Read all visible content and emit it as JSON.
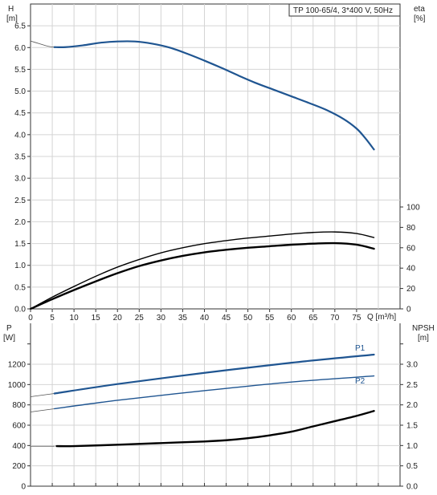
{
  "colors": {
    "blue": "#1f5591",
    "black": "#000000",
    "grid": "#d4d4d4",
    "axis": "#333333"
  },
  "chart_data": [
    {
      "type": "line",
      "legend": "TP 100-65/4, 3*400 V, 50Hz",
      "ylabel_left": "H",
      "ylabel_left_unit": "[m]",
      "ylabel_right": "eta",
      "ylabel_right_unit": "[%]",
      "xlabel": "Q [m³/h]",
      "x_ticks": [
        "0",
        "5",
        "10",
        "15",
        "20",
        "25",
        "30",
        "35",
        "40",
        "45",
        "50",
        "55",
        "60",
        "65",
        "70",
        "75"
      ],
      "xlim": [
        0,
        85
      ],
      "y_left_ticks": [
        "0.0",
        "0.5",
        "1.0",
        "1.5",
        "2.0",
        "2.5",
        "3.0",
        "3.5",
        "4.0",
        "4.5",
        "5.0",
        "5.5",
        "6.0",
        "6.5"
      ],
      "y_left_lim": [
        0,
        7.0
      ],
      "y_right_ticks": [
        "0",
        "20",
        "40",
        "60",
        "80",
        "100"
      ],
      "y_right_lim": [
        0,
        100
      ],
      "grid": true,
      "series": [
        {
          "axis": "left",
          "style": "thin-gray",
          "x": [
            0,
            2,
            4,
            5.5
          ],
          "y": [
            6.15,
            6.09,
            6.03,
            6.01
          ]
        },
        {
          "axis": "left",
          "style": "blue-thick",
          "x": [
            5.5,
            8,
            12,
            16,
            20,
            24,
            28,
            32,
            36,
            40,
            44,
            48,
            52,
            56,
            60,
            64,
            68,
            72,
            75,
            77,
            79
          ],
          "y": [
            6.01,
            6.01,
            6.05,
            6.11,
            6.14,
            6.14,
            6.09,
            6.0,
            5.86,
            5.7,
            5.53,
            5.35,
            5.18,
            5.03,
            4.88,
            4.73,
            4.57,
            4.36,
            4.14,
            3.92,
            3.66
          ]
        },
        {
          "axis": "right",
          "style": "black-thin",
          "x": [
            0,
            5,
            10,
            15,
            20,
            25,
            30,
            35,
            40,
            45,
            50,
            55,
            60,
            65,
            70,
            75,
            79
          ],
          "y": [
            0,
            11.5,
            22,
            32,
            41,
            48.5,
            55,
            60,
            64,
            67,
            69.5,
            71.5,
            73.5,
            75,
            75.5,
            74,
            70
          ]
        },
        {
          "axis": "right",
          "style": "black-thick",
          "x": [
            0,
            5,
            10,
            15,
            20,
            25,
            30,
            35,
            40,
            45,
            50,
            55,
            60,
            65,
            70,
            75,
            79
          ],
          "y": [
            0,
            9.5,
            18.5,
            27,
            35,
            42,
            47.5,
            52,
            55.5,
            58,
            60,
            61.5,
            63,
            64,
            64.5,
            63,
            59
          ]
        }
      ]
    },
    {
      "type": "line",
      "ylabel_left": "P",
      "ylabel_left_unit": "[W]",
      "ylabel_right": "NPSH",
      "ylabel_right_unit": "[m]",
      "y_left_ticks": [
        "0",
        "200",
        "400",
        "600",
        "800",
        "1000",
        "1200"
      ],
      "y_left_lim": [
        0,
        1400
      ],
      "y_right_ticks": [
        "0.0",
        "0.5",
        "1.0",
        "1.5",
        "2.0",
        "2.5",
        "3.0"
      ],
      "y_right_lim": [
        0,
        3.5
      ],
      "xlim": [
        0,
        85
      ],
      "grid": true,
      "series": [
        {
          "axis": "left",
          "style": "thin-gray",
          "x": [
            0,
            5.5
          ],
          "y": [
            880,
            912
          ]
        },
        {
          "name": "P1",
          "axis": "left",
          "style": "blue-thick",
          "x": [
            5.5,
            20,
            40,
            60,
            79
          ],
          "y": [
            912,
            1005,
            1115,
            1215,
            1295
          ]
        },
        {
          "axis": "left",
          "style": "thin-gray",
          "x": [
            0,
            5.5
          ],
          "y": [
            730,
            762
          ]
        },
        {
          "name": "P2",
          "axis": "left",
          "style": "blue-thin",
          "x": [
            5.5,
            20,
            40,
            60,
            79
          ],
          "y": [
            762,
            845,
            940,
            1025,
            1085
          ]
        },
        {
          "axis": "left",
          "style": "thin-gray",
          "x": [
            0,
            5.5
          ],
          "y": [
            393,
            393
          ]
        },
        {
          "axis": "right",
          "style": "black-thick",
          "x": [
            6,
            10,
            20,
            30,
            40,
            45,
            50,
            55,
            60,
            65,
            70,
            75,
            79
          ],
          "y": [
            0.985,
            0.985,
            1.02,
            1.06,
            1.1,
            1.13,
            1.18,
            1.25,
            1.34,
            1.47,
            1.6,
            1.73,
            1.85
          ]
        }
      ]
    }
  ]
}
